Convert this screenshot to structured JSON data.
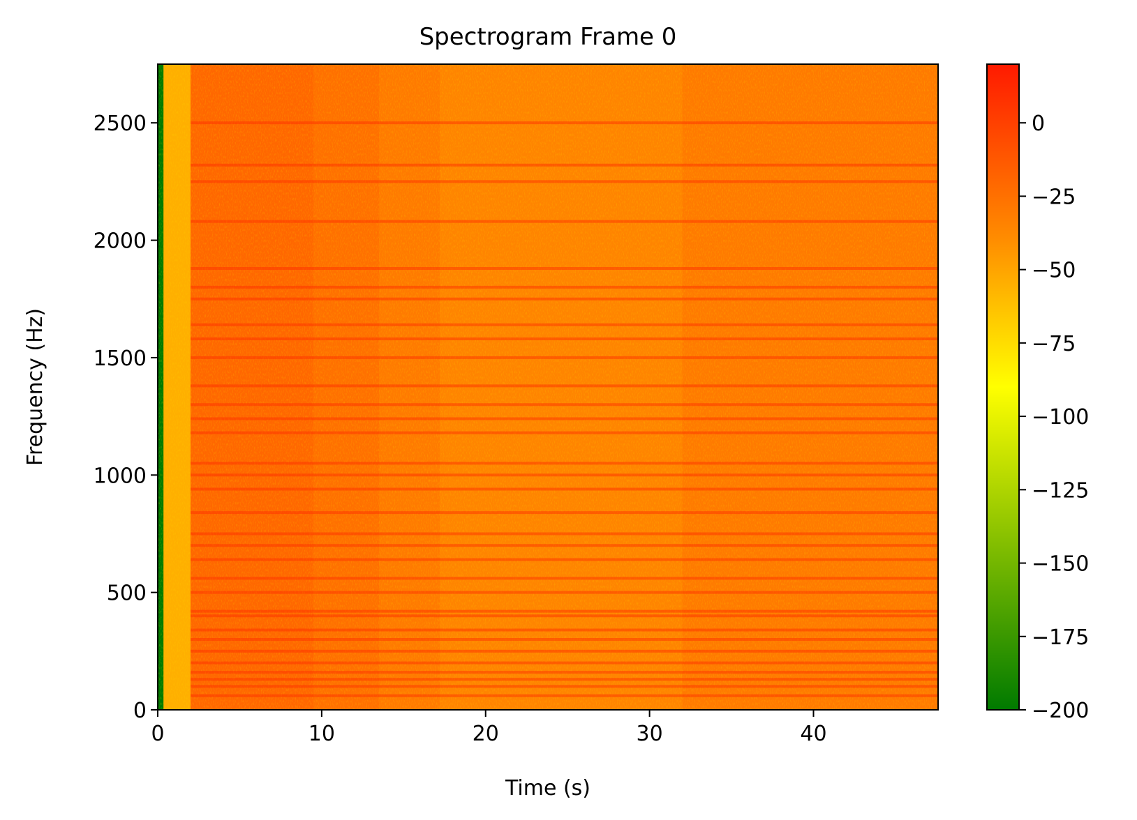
{
  "chart_data": {
    "type": "heatmap",
    "title": "Spectrogram Frame 0",
    "xlabel": "Time (s)",
    "ylabel": "Frequency (Hz)",
    "xlim": [
      0,
      47.6
    ],
    "ylim": [
      0,
      2750
    ],
    "xticks": [
      0,
      10,
      20,
      30,
      40
    ],
    "xtick_labels": [
      "0",
      "10",
      "20",
      "30",
      "40"
    ],
    "yticks": [
      0,
      500,
      1000,
      1500,
      2000,
      2500
    ],
    "ytick_labels": [
      "0",
      "500",
      "1000",
      "1500",
      "2000",
      "2500"
    ],
    "colorbar": {
      "vmin": -200,
      "vmax": 20,
      "ticks": [
        0,
        -25,
        -50,
        -75,
        -100,
        -125,
        -150,
        -175,
        -200
      ],
      "tick_labels": [
        "0",
        "−25",
        "−50",
        "−75",
        "−100",
        "−125",
        "−150",
        "−175",
        "−200"
      ],
      "colors": [
        "#007a00",
        "#ffff00",
        "#ff8c00",
        "#ff1a00"
      ]
    },
    "grid": false,
    "legend": "none",
    "regions": [
      {
        "t": [
          0,
          0.35
        ],
        "level": -200
      },
      {
        "t": [
          0.35,
          2.0
        ],
        "level": -55
      },
      {
        "t": [
          2.0,
          9.5
        ],
        "level": -20
      },
      {
        "t": [
          9.5,
          13.5
        ],
        "level": -25
      },
      {
        "t": [
          13.5,
          17.2
        ],
        "level": -30
      },
      {
        "t": [
          17.2,
          32.0
        ],
        "level": -35
      },
      {
        "t": [
          32.0,
          47.6
        ],
        "level": -30
      }
    ],
    "harmonic_lines_hz": [
      60,
      100,
      130,
      160,
      200,
      250,
      300,
      340,
      400,
      420,
      500,
      560,
      640,
      700,
      750,
      840,
      940,
      1000,
      1050,
      1180,
      1240,
      1300,
      1380,
      1500,
      1580,
      1640,
      1750,
      1800,
      1880,
      2080,
      2250,
      2320,
      2500
    ]
  }
}
